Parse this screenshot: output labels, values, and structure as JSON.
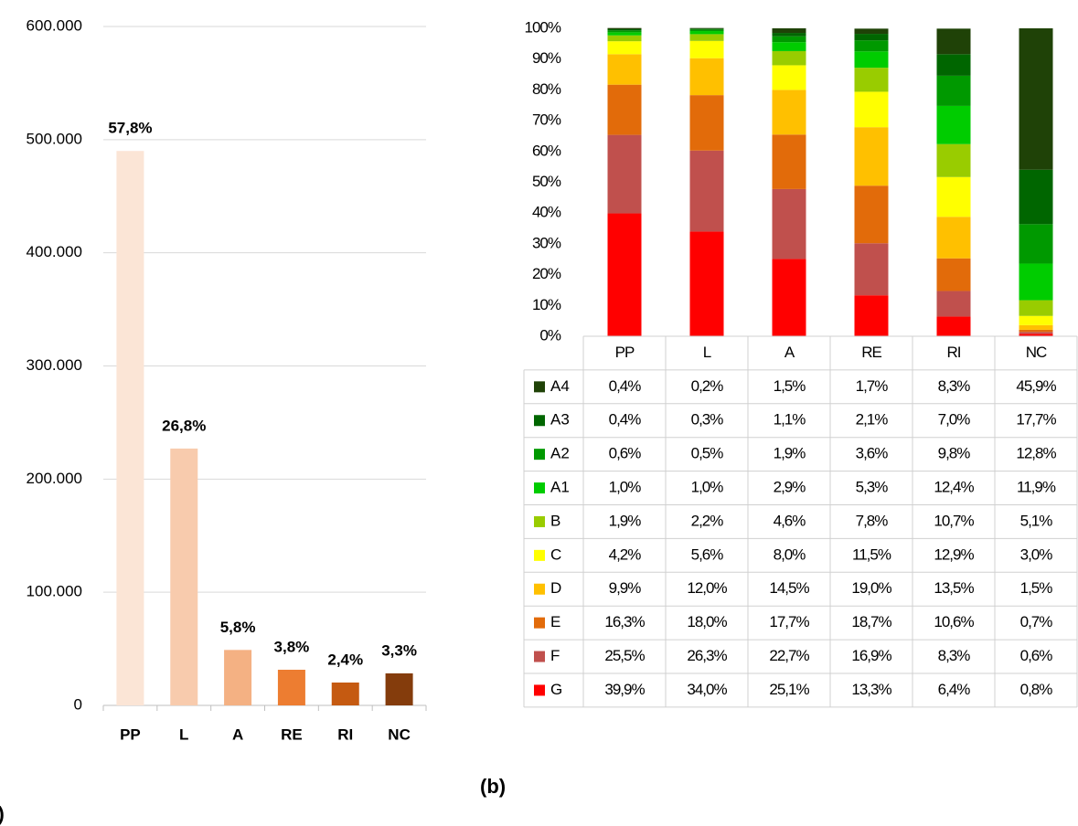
{
  "chart_data": [
    {
      "type": "bar",
      "panel_label": "(a)",
      "categories": [
        "PP",
        "L",
        "A",
        "RE",
        "RI",
        "NC"
      ],
      "values": [
        490000,
        227000,
        49000,
        31500,
        20200,
        28300
      ],
      "annotations": [
        "57,8%",
        "26,8%",
        "5,8%",
        "3,8%",
        "2,4%",
        "3,3%"
      ],
      "colors": [
        "#fbe5d6",
        "#f8cbad",
        "#f4b183",
        "#ed7d31",
        "#c55a11",
        "#843c0c"
      ],
      "ylim": [
        0,
        600000
      ],
      "yticks": [
        0,
        {
          "value": 100000,
          "label": "100.000"
        },
        {
          "value": 200000,
          "label": "200.000"
        },
        {
          "value": 300000,
          "label": "300.000"
        },
        {
          "value": 400000,
          "label": "400.000"
        },
        {
          "value": 500000,
          "label": "500.000"
        },
        {
          "value": 600000,
          "label": "600.000"
        }
      ],
      "grid": true
    },
    {
      "type": "stacked_bar_table",
      "panel_label": "(b)",
      "categories": [
        "PP",
        "L",
        "A",
        "RE",
        "RI",
        "NC"
      ],
      "ylim": [
        0,
        100
      ],
      "yticks": [
        {
          "value": 0,
          "label": "0%"
        },
        {
          "value": 10,
          "label": "10%"
        },
        {
          "value": 20,
          "label": "20%"
        },
        {
          "value": 30,
          "label": "30%"
        },
        {
          "value": 40,
          "label": "40%"
        },
        {
          "value": 50,
          "label": "50%"
        },
        {
          "value": 60,
          "label": "60%"
        },
        {
          "value": 70,
          "label": "70%"
        },
        {
          "value": 80,
          "label": "80%"
        },
        {
          "value": 90,
          "label": "90%"
        },
        {
          "value": 100,
          "label": "100%"
        }
      ],
      "series": [
        {
          "name": "G",
          "color": "#ff0000",
          "values": [
            39.9,
            34.0,
            25.1,
            13.3,
            6.4,
            0.8
          ],
          "value_labels": [
            "39,9%",
            "34,0%",
            "25,1%",
            "13,3%",
            "6,4%",
            "0,8%"
          ]
        },
        {
          "name": "F",
          "color": "#c0504d",
          "values": [
            25.5,
            26.3,
            22.7,
            16.9,
            8.3,
            0.6
          ],
          "value_labels": [
            "25,5%",
            "26,3%",
            "22,7%",
            "16,9%",
            "8,3%",
            "0,6%"
          ]
        },
        {
          "name": "E",
          "color": "#e26b0a",
          "values": [
            16.3,
            18.0,
            17.7,
            18.7,
            10.6,
            0.7
          ],
          "value_labels": [
            "16,3%",
            "18,0%",
            "17,7%",
            "18,7%",
            "10,6%",
            "0,7%"
          ]
        },
        {
          "name": "D",
          "color": "#ffc000",
          "values": [
            9.9,
            12.0,
            14.5,
            19.0,
            13.5,
            1.5
          ],
          "value_labels": [
            "9,9%",
            "12,0%",
            "14,5%",
            "19,0%",
            "13,5%",
            "1,5%"
          ]
        },
        {
          "name": "C",
          "color": "#ffff00",
          "values": [
            4.2,
            5.6,
            8.0,
            11.5,
            12.9,
            3.0
          ],
          "value_labels": [
            "4,2%",
            "5,6%",
            "8,0%",
            "11,5%",
            "12,9%",
            "3,0%"
          ]
        },
        {
          "name": "B",
          "color": "#99cc00",
          "values": [
            1.9,
            2.2,
            4.6,
            7.8,
            10.7,
            5.1
          ],
          "value_labels": [
            "1,9%",
            "2,2%",
            "4,6%",
            "7,8%",
            "10,7%",
            "5,1%"
          ]
        },
        {
          "name": "A1",
          "color": "#00cc00",
          "values": [
            1.0,
            1.0,
            2.9,
            5.3,
            12.4,
            11.9
          ],
          "value_labels": [
            "1,0%",
            "1,0%",
            "2,9%",
            "5,3%",
            "12,4%",
            "11,9%"
          ]
        },
        {
          "name": "A2",
          "color": "#009900",
          "values": [
            0.6,
            0.5,
            1.9,
            3.6,
            9.8,
            12.8
          ],
          "value_labels": [
            "0,6%",
            "0,5%",
            "1,9%",
            "3,6%",
            "9,8%",
            "12,8%"
          ]
        },
        {
          "name": "A3",
          "color": "#006600",
          "values": [
            0.4,
            0.3,
            1.1,
            2.1,
            7.0,
            17.7
          ],
          "value_labels": [
            "0,4%",
            "0,3%",
            "1,1%",
            "2,1%",
            "7,0%",
            "17,7%"
          ]
        },
        {
          "name": "A4",
          "color": "#1f4207",
          "values": [
            0.4,
            0.2,
            1.5,
            1.7,
            8.3,
            45.9
          ],
          "value_labels": [
            "0,4%",
            "0,2%",
            "1,5%",
            "1,7%",
            "8,3%",
            "45,9%"
          ]
        }
      ]
    }
  ]
}
